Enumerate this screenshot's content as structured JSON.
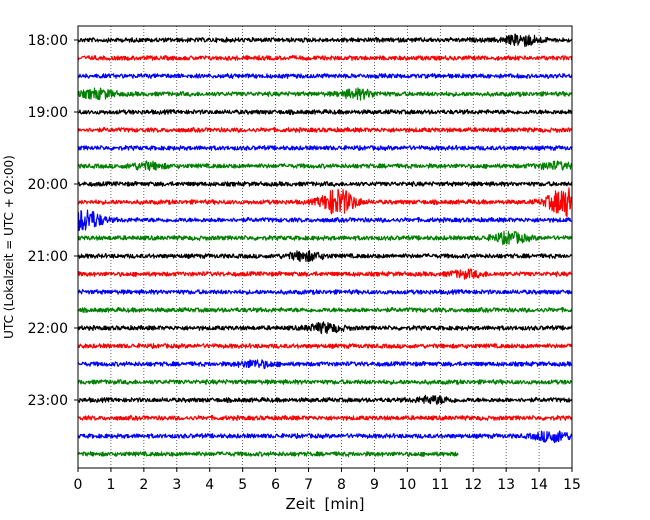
{
  "chart_data": {
    "type": "line",
    "title": "",
    "xlabel": "Zeit  [min]",
    "ylabel": "UTC (Lokalzeit = UTC + 02:00)",
    "xlim": [
      0,
      15
    ],
    "x_ticks": [
      0,
      1,
      2,
      3,
      4,
      5,
      6,
      7,
      8,
      9,
      10,
      11,
      12,
      13,
      14,
      15
    ],
    "x_grid": true,
    "y_tick_labels": [
      "18:00",
      "19:00",
      "20:00",
      "21:00",
      "22:00",
      "23:00"
    ],
    "trace_interval_minutes": 15,
    "first_trace": "18:00",
    "series": [
      {
        "start": "18:00",
        "color": "#000000",
        "end_min": 15,
        "events": [
          {
            "t": 13.5,
            "amp": 5
          }
        ]
      },
      {
        "start": "18:15",
        "color": "#ff0000",
        "end_min": 15,
        "events": []
      },
      {
        "start": "18:30",
        "color": "#0000ff",
        "end_min": 15,
        "events": []
      },
      {
        "start": "18:45",
        "color": "#008000",
        "end_min": 15,
        "events": [
          {
            "t": 0.6,
            "amp": 4
          },
          {
            "t": 8.5,
            "amp": 4
          }
        ]
      },
      {
        "start": "19:00",
        "color": "#000000",
        "end_min": 15,
        "events": []
      },
      {
        "start": "19:15",
        "color": "#ff0000",
        "end_min": 15,
        "events": []
      },
      {
        "start": "19:30",
        "color": "#0000ff",
        "end_min": 15,
        "events": []
      },
      {
        "start": "19:45",
        "color": "#008000",
        "end_min": 15,
        "events": [
          {
            "t": 2.1,
            "amp": 3
          },
          {
            "t": 14.5,
            "amp": 3
          }
        ]
      },
      {
        "start": "20:00",
        "color": "#000000",
        "end_min": 15,
        "events": []
      },
      {
        "start": "20:15",
        "color": "#ff0000",
        "end_min": 15,
        "events": [
          {
            "t": 7.9,
            "amp": 12
          },
          {
            "t": 14.8,
            "amp": 14
          }
        ]
      },
      {
        "start": "20:30",
        "color": "#0000ff",
        "end_min": 15,
        "events": [
          {
            "t": 0.2,
            "amp": 10
          }
        ]
      },
      {
        "start": "20:45",
        "color": "#008000",
        "end_min": 15,
        "events": [
          {
            "t": 13.1,
            "amp": 5
          }
        ]
      },
      {
        "start": "21:00",
        "color": "#000000",
        "end_min": 15,
        "events": [
          {
            "t": 6.9,
            "amp": 4
          }
        ]
      },
      {
        "start": "21:15",
        "color": "#ff0000",
        "end_min": 15,
        "events": [
          {
            "t": 11.8,
            "amp": 3
          }
        ]
      },
      {
        "start": "21:30",
        "color": "#0000ff",
        "end_min": 15,
        "events": []
      },
      {
        "start": "21:45",
        "color": "#008000",
        "end_min": 15,
        "events": []
      },
      {
        "start": "22:00",
        "color": "#000000",
        "end_min": 15,
        "events": [
          {
            "t": 7.5,
            "amp": 4
          }
        ]
      },
      {
        "start": "22:15",
        "color": "#ff0000",
        "end_min": 15,
        "events": []
      },
      {
        "start": "22:30",
        "color": "#0000ff",
        "end_min": 15,
        "events": [
          {
            "t": 5.4,
            "amp": 3
          }
        ]
      },
      {
        "start": "22:45",
        "color": "#008000",
        "end_min": 15,
        "events": []
      },
      {
        "start": "23:00",
        "color": "#000000",
        "end_min": 15,
        "events": [
          {
            "t": 10.8,
            "amp": 3
          }
        ]
      },
      {
        "start": "23:15",
        "color": "#ff0000",
        "end_min": 15,
        "events": []
      },
      {
        "start": "23:30",
        "color": "#0000ff",
        "end_min": 15,
        "events": [
          {
            "t": 14.4,
            "amp": 5
          }
        ]
      },
      {
        "start": "23:45",
        "color": "#008000",
        "end_min": 11.55,
        "events": []
      }
    ]
  }
}
